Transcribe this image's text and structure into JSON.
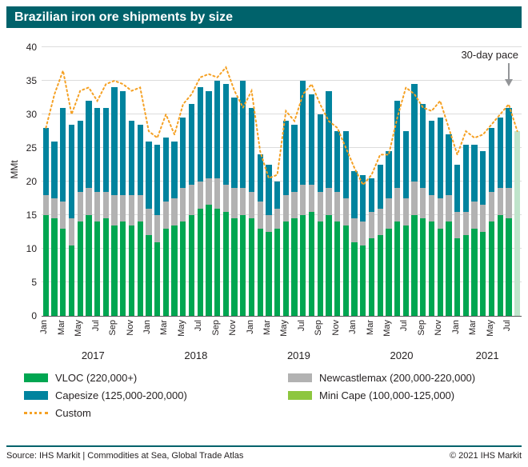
{
  "header": {
    "title": "Brazilian iron ore shipments by size"
  },
  "colors": {
    "header_bg": "#00626b",
    "grid": "#dcdcdc",
    "axis": "#58595b",
    "annotation_arrow": "#939598"
  },
  "annotation": {
    "pace_label": "30-day pace"
  },
  "legend": {
    "items": [
      {
        "label": "VLOC (220,000+)",
        "color": "#00a651",
        "swatch": "rect"
      },
      {
        "label": "Newcastlemax (200,000-220,000)",
        "color": "#b2b2b2",
        "swatch": "rect"
      },
      {
        "label": "Capesize (125,000-200,000)",
        "color": "#00839e",
        "swatch": "rect"
      },
      {
        "label": "Mini Cape (100,000-125,000)",
        "color": "#8dc63f",
        "swatch": "rect"
      },
      {
        "label": "Custom",
        "color": "#f5a124",
        "swatch": "dotted-line"
      }
    ]
  },
  "footer": {
    "source": "Source: IHS Markit | Commodities at Sea, Global Trade Atlas",
    "copyright": "© 2021 IHS Markit"
  },
  "chart_data": {
    "type": "bar",
    "subtype": "stacked-bar-with-dotted-line",
    "title": "Brazilian iron ore shipments by size",
    "xlabel": "",
    "ylabel": "MMt",
    "ylim": [
      0,
      40
    ],
    "ytick_step": 5,
    "grid": true,
    "legend_position": "bottom",
    "xtick_months": [
      "Jan",
      "Mar",
      "May",
      "Jul",
      "Sep",
      "Nov"
    ],
    "categories": [
      "Jan",
      "Feb",
      "Mar",
      "Apr",
      "May",
      "Jun",
      "Jul",
      "Aug",
      "Sep",
      "Oct",
      "Nov",
      "Dec",
      "Jan",
      "Feb",
      "Mar",
      "Apr",
      "May",
      "Jun",
      "Jul",
      "Aug",
      "Sep",
      "Oct",
      "Nov",
      "Dec",
      "Jan",
      "Feb",
      "Mar",
      "Apr",
      "May",
      "Jun",
      "Jul",
      "Aug",
      "Sep",
      "Oct",
      "Nov",
      "Dec",
      "Jan",
      "Feb",
      "Mar",
      "Apr",
      "May",
      "Jun",
      "Jul",
      "Aug",
      "Sep",
      "Oct",
      "Nov",
      "Dec",
      "Jan",
      "Feb",
      "Mar",
      "Apr",
      "May",
      "Jun",
      "Jul",
      ""
    ],
    "year_groups": [
      {
        "label": "2017",
        "start": 0,
        "count": 12
      },
      {
        "label": "2018",
        "start": 12,
        "count": 12
      },
      {
        "label": "2019",
        "start": 24,
        "count": 12
      },
      {
        "label": "2020",
        "start": 36,
        "count": 12
      },
      {
        "label": "2021",
        "start": 48,
        "count": 8
      }
    ],
    "series": [
      {
        "name": "VLOC (220,000+)",
        "color": "#00a651",
        "values": [
          15,
          14.5,
          13,
          10.5,
          14,
          15,
          14,
          14.5,
          13.5,
          14,
          13.5,
          14,
          12,
          11,
          13,
          13.5,
          14,
          15,
          16,
          16.5,
          16,
          15.5,
          14.5,
          15,
          14.5,
          13,
          12.5,
          13,
          14,
          14.5,
          15,
          15.5,
          14,
          15,
          14,
          13.5,
          11,
          10.5,
          11.5,
          12,
          13,
          14,
          13.5,
          15,
          14.5,
          14,
          13,
          14,
          11.5,
          12,
          13,
          12.5,
          14,
          15,
          14.5,
          0
        ]
      },
      {
        "name": "Newcastlemax (200,000-220,000)",
        "color": "#b2b2b2",
        "values": [
          3,
          3,
          4,
          4,
          4.5,
          4,
          4.5,
          4,
          4.5,
          4,
          4.5,
          4,
          4,
          4,
          4,
          4,
          5,
          4.5,
          4,
          4,
          4.5,
          4,
          4.5,
          4,
          4,
          4,
          2.5,
          3,
          4,
          4,
          4.5,
          4,
          4.5,
          4,
          4.5,
          4,
          3.5,
          3.5,
          4,
          4,
          4.5,
          5,
          4,
          5,
          4.5,
          4,
          4.5,
          4,
          4,
          3.5,
          4,
          4,
          4.5,
          4,
          4.5,
          0
        ]
      },
      {
        "name": "Capesize (125,000-200,000)",
        "color": "#00839e",
        "values": [
          10,
          8.5,
          14,
          14,
          10.5,
          13,
          12.5,
          12.5,
          16,
          15.5,
          11,
          10.5,
          10,
          10.5,
          9.5,
          8.5,
          10.5,
          12,
          14,
          13,
          14.5,
          15,
          13.5,
          16,
          12.5,
          7,
          7.5,
          4,
          11,
          10,
          15.5,
          13.5,
          11.5,
          14.5,
          9,
          10,
          7,
          7,
          5,
          6.5,
          7,
          13,
          10,
          14.5,
          12.5,
          11,
          12,
          9,
          7,
          10,
          8.5,
          8,
          9.5,
          10.5,
          12,
          0
        ]
      },
      {
        "name": "Mini Cape (100,000-125,000)",
        "color": "#8dc63f",
        "values": [
          0,
          0,
          0,
          0,
          0,
          0,
          0,
          0,
          0,
          0,
          0,
          0,
          0,
          0,
          0,
          0,
          0,
          0,
          0,
          0,
          0,
          0,
          0,
          0,
          0,
          0,
          0,
          0,
          0,
          0,
          0,
          0,
          0,
          0,
          0,
          0,
          0,
          0,
          0,
          0,
          0,
          0,
          0,
          0,
          0,
          0,
          0,
          0,
          0,
          0,
          0,
          0,
          0,
          0,
          0,
          0
        ]
      }
    ],
    "line_series": {
      "name": "Custom",
      "color": "#f5a124",
      "style": "dotted",
      "values": [
        28,
        33,
        36.5,
        30,
        33.5,
        34,
        32,
        34.5,
        35,
        34.5,
        33.5,
        34,
        27.5,
        26.5,
        30,
        27,
        31.5,
        33,
        35.5,
        36,
        35.5,
        37,
        33.5,
        31,
        33.5,
        24.5,
        20.5,
        21,
        30.5,
        29,
        33,
        34.5,
        31.5,
        29,
        28,
        25,
        22,
        19.5,
        21,
        24,
        24,
        29.5,
        34,
        33,
        31,
        30.5,
        32,
        28,
        24,
        27.5,
        26.5,
        27,
        28.5,
        30,
        31.5,
        27.5
      ]
    },
    "pace_bar": {
      "label": "30-day pace",
      "index": 55,
      "value": 27.5,
      "color": "#bfe4cb"
    }
  }
}
